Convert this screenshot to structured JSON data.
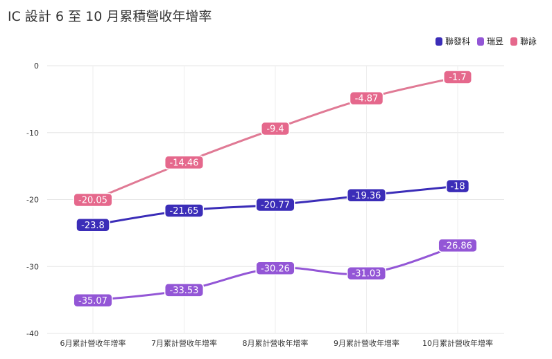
{
  "chart_data": {
    "type": "line",
    "title": "IC 設計 6 至 10 月累積營收年增率",
    "xlabel": "",
    "ylabel": "",
    "categories": [
      "6月累計營收年增率",
      "7月累計營收年增率",
      "8月累計營收年增率",
      "9月累計營收年增率",
      "10月累計營收年增率"
    ],
    "ylim": [
      -40,
      0
    ],
    "yticks": [
      0,
      -10,
      -20,
      -30,
      -40
    ],
    "grid": true,
    "legend_position": "top-right",
    "series": [
      {
        "name": "聯發科",
        "color": "#3b2db8",
        "values": [
          -23.8,
          -21.65,
          -20.77,
          -19.36,
          -18
        ],
        "labels": [
          "-23.8",
          "-21.65",
          "-20.77",
          "-19.36",
          "-18"
        ]
      },
      {
        "name": "瑞昱",
        "color": "#9356d6",
        "values": [
          -35.07,
          -33.53,
          -30.26,
          -31.03,
          -26.86
        ],
        "labels": [
          "-35.07",
          "-33.53",
          "-30.26",
          "-31.03",
          "-26.86"
        ]
      },
      {
        "name": "聯詠",
        "color": "#e5688c",
        "values": [
          -20.05,
          -14.46,
          -9.4,
          -4.87,
          -1.7
        ],
        "labels": [
          "-20.05",
          "-14.46",
          "-9.4",
          "-4.87",
          "-1.7"
        ]
      }
    ]
  }
}
